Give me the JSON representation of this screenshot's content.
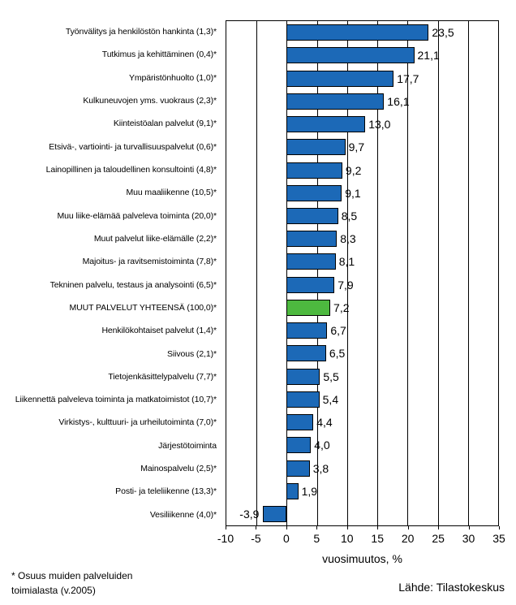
{
  "chart_data": {
    "type": "bar",
    "orientation": "horizontal",
    "xlabel": "vuosimuutos, %",
    "xlim": [
      -10,
      35
    ],
    "xticks": [
      -10,
      -5,
      0,
      5,
      10,
      15,
      20,
      25,
      30,
      35
    ],
    "grid": true,
    "legend": "none",
    "bar_color": "#1c69b7",
    "highlight_color": "#4db93f",
    "highlight_index": 12,
    "categories": [
      "Työnvälitys ja henkilöstön hankinta (1,3)*",
      "Tutkimus ja kehittäminen (0,4)*",
      "Ympäristönhuolto (1,0)*",
      "Kulkuneuvojen yms. vuokraus (2,3)*",
      "Kiinteistöalan palvelut (9,1)*",
      "Etsivä-, vartiointi- ja turvallisuuspalvelut (0,6)*",
      "Lainopillinen ja taloudellinen konsultointi (4,8)*",
      "Muu maaliikenne (10,5)*",
      "Muu liike-elämää palveleva toiminta (20,0)*",
      "Muut palvelut liike-elämälle (2,2)*",
      "Majoitus- ja ravitsemistoiminta (7,8)*",
      "Tekninen palvelu, testaus ja analysointi (6,5)*",
      "MUUT PALVELUT YHTEENSÄ (100,0)*",
      "Henkilökohtaiset palvelut (1,4)*",
      "Siivous (2,1)*",
      "Tietojenkäsittelypalvelu (7,7)*",
      "Liikennettä palveleva toiminta ja matkatoimistot (10,7)*",
      "Virkistys-, kulttuuri- ja urheilutoiminta (7,0)*",
      "Järjestötoiminta",
      "Mainospalvelu (2,5)*",
      "Posti- ja teleliikenne (13,3)*",
      "Vesiliikenne (4,0)*"
    ],
    "values": [
      23.5,
      21.1,
      17.7,
      16.1,
      13.0,
      9.7,
      9.2,
      9.1,
      8.5,
      8.3,
      8.1,
      7.9,
      7.2,
      6.7,
      6.5,
      5.5,
      5.4,
      4.4,
      4.0,
      3.8,
      1.9,
      -3.9
    ],
    "value_labels": [
      "23,5",
      "21,1",
      "17,7",
      "16,1",
      "13,0",
      "9,7",
      "9,2",
      "9,1",
      "8,5",
      "8,3",
      "8,1",
      "7,9",
      "7,2",
      "6,7",
      "6,5",
      "5,5",
      "5,4",
      "4,4",
      "4,0",
      "3,8",
      "1,9",
      "-3,9"
    ]
  },
  "footer": {
    "footnote_line1": "* Osuus muiden palveluiden",
    "footnote_line2": "toimialasta (v.2005)",
    "source": "Lähde: Tilastokeskus"
  }
}
